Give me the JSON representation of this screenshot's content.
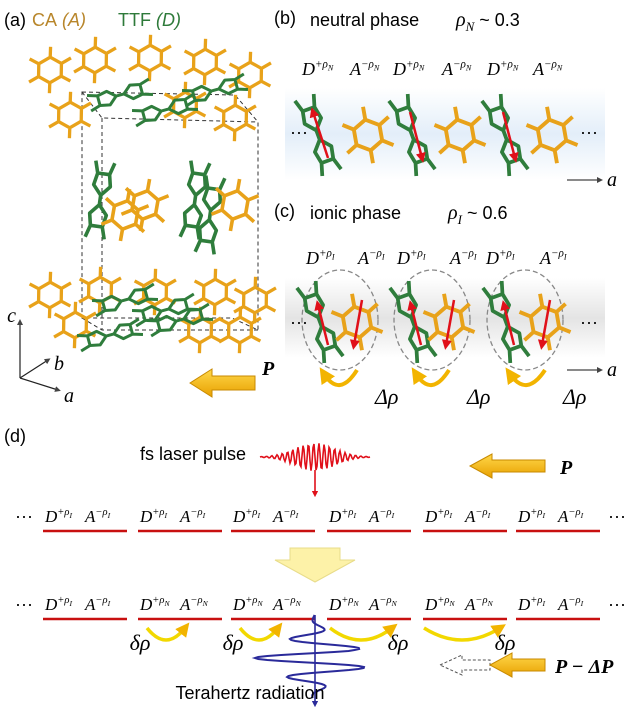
{
  "panel_a": {
    "label": "(a)",
    "legend": [
      {
        "name": "CA",
        "symbol": "(A)",
        "color": "#b8862b"
      },
      {
        "name": "TTF",
        "symbol": "(D)",
        "color": "#2e7a3a"
      }
    ],
    "axes": {
      "c": "c",
      "b": "b",
      "a": "a"
    }
  },
  "panel_b": {
    "label": "(b)",
    "title": "neutral phase",
    "rho": {
      "base": "ρ",
      "sub": "N",
      "rest": " ~ 0.3"
    },
    "molecules": [
      {
        "base": "D",
        "sup": "+ρ",
        "sub": "N"
      },
      {
        "base": "A",
        "sup": "−ρ",
        "sub": "N"
      },
      {
        "base": "D",
        "sup": "+ρ",
        "sub": "N"
      },
      {
        "base": "A",
        "sup": "−ρ",
        "sub": "N"
      },
      {
        "base": "D",
        "sup": "+ρ",
        "sub": "N"
      },
      {
        "base": "A",
        "sup": "−ρ",
        "sub": "N"
      }
    ],
    "ellipsis": "···",
    "axis": "a"
  },
  "panel_c": {
    "label": "(c)",
    "title": "ionic phase",
    "rho": {
      "base": "ρ",
      "sub": "I",
      "rest": " ~ 0.6"
    },
    "molecules": [
      {
        "base": "D",
        "sup": "+ρ",
        "sub": "I"
      },
      {
        "base": "A",
        "sup": "−ρ",
        "sub": "I"
      },
      {
        "base": "D",
        "sup": "+ρ",
        "sub": "I"
      },
      {
        "base": "A",
        "sup": "−ρ",
        "sub": "I"
      },
      {
        "base": "D",
        "sup": "+ρ",
        "sub": "I"
      },
      {
        "base": "A",
        "sup": "−ρ",
        "sub": "I"
      }
    ],
    "ellipsis": "···",
    "axis": "a",
    "charge_transfer": [
      "Δρ",
      "Δρ",
      "Δρ"
    ],
    "polarization": "P"
  },
  "panel_d": {
    "label": "(d)",
    "pulse": "fs laser pulse",
    "polarization_before": "P",
    "ellipsis": "···",
    "row1": [
      {
        "base": "D",
        "sup": "+ρ",
        "sub": "I"
      },
      {
        "base": "A",
        "sup": "−ρ",
        "sub": "I"
      },
      {
        "base": "D",
        "sup": "+ρ",
        "sub": "I"
      },
      {
        "base": "A",
        "sup": "−ρ",
        "sub": "I"
      },
      {
        "base": "D",
        "sup": "+ρ",
        "sub": "I"
      },
      {
        "base": "A",
        "sup": "−ρ",
        "sub": "I"
      },
      {
        "base": "D",
        "sup": "+ρ",
        "sub": "I"
      },
      {
        "base": "A",
        "sup": "−ρ",
        "sub": "I"
      },
      {
        "base": "D",
        "sup": "+ρ",
        "sub": "I"
      },
      {
        "base": "A",
        "sup": "−ρ",
        "sub": "I"
      },
      {
        "base": "D",
        "sup": "+ρ",
        "sub": "I"
      },
      {
        "base": "A",
        "sup": "−ρ",
        "sub": "I"
      }
    ],
    "row2": [
      {
        "base": "D",
        "sup": "+ρ",
        "sub": "I"
      },
      {
        "base": "A",
        "sup": "−ρ",
        "sub": "I"
      },
      {
        "base": "D",
        "sup": "+ρ",
        "sub": "N"
      },
      {
        "base": "A",
        "sup": "−ρ",
        "sub": "N"
      },
      {
        "base": "D",
        "sup": "+ρ",
        "sub": "N"
      },
      {
        "base": "A",
        "sup": "−ρ",
        "sub": "N"
      },
      {
        "base": "D",
        "sup": "+ρ",
        "sub": "N"
      },
      {
        "base": "A",
        "sup": "−ρ",
        "sub": "N"
      },
      {
        "base": "D",
        "sup": "+ρ",
        "sub": "N"
      },
      {
        "base": "A",
        "sup": "−ρ",
        "sub": "N"
      },
      {
        "base": "D",
        "sup": "+ρ",
        "sub": "I"
      },
      {
        "base": "A",
        "sup": "−ρ",
        "sub": "I"
      }
    ],
    "transfer": [
      "δρ",
      "δρ",
      "δρ",
      "δρ"
    ],
    "polarization_after": "P − ΔP",
    "radiation": "Terahertz radiation"
  }
}
